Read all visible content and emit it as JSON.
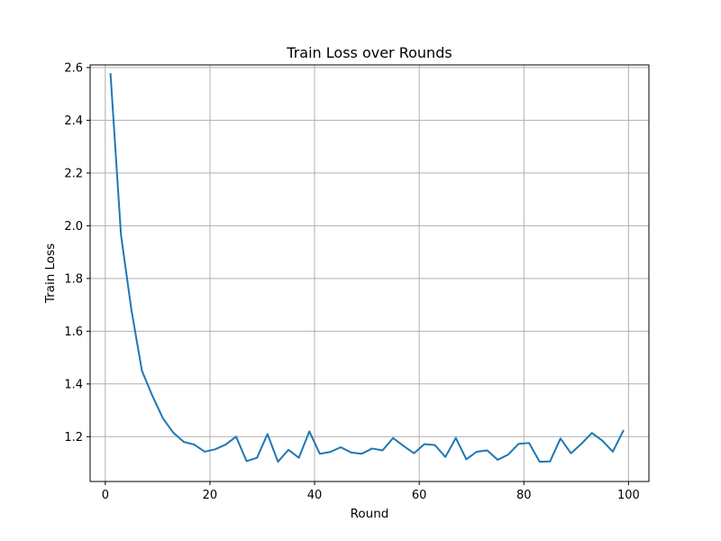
{
  "chart_data": {
    "type": "line",
    "title": "Train Loss over Rounds",
    "xlabel": "Round",
    "ylabel": "Train Loss",
    "xlim": [
      -2.9,
      103.9
    ],
    "ylim": [
      1.03,
      2.61
    ],
    "xticks": [
      0,
      20,
      40,
      60,
      80,
      100
    ],
    "yticks": [
      1.2,
      1.4,
      1.6,
      1.8,
      2.0,
      2.2,
      2.4,
      2.6
    ],
    "xtick_labels": [
      "0",
      "20",
      "40",
      "60",
      "80",
      "100"
    ],
    "ytick_labels": [
      "1.2",
      "1.4",
      "1.6",
      "1.8",
      "2.0",
      "2.2",
      "2.4",
      "2.6"
    ],
    "grid": true,
    "series": [
      {
        "color": "#1f77b4",
        "x": [
          1,
          3,
          5,
          7,
          9,
          11,
          13,
          15,
          17,
          19,
          21,
          23,
          25,
          27,
          29,
          31,
          33,
          35,
          37,
          39,
          41,
          43,
          45,
          47,
          49,
          51,
          53,
          55,
          57,
          59,
          61,
          63,
          65,
          67,
          69,
          71,
          73,
          75,
          77,
          79,
          81,
          83,
          85,
          87,
          89,
          91,
          93,
          95,
          97,
          99
        ],
        "y": [
          2.575,
          1.965,
          1.68,
          1.45,
          1.355,
          1.27,
          1.215,
          1.18,
          1.17,
          1.143,
          1.152,
          1.17,
          1.2,
          1.107,
          1.12,
          1.21,
          1.105,
          1.15,
          1.12,
          1.22,
          1.135,
          1.142,
          1.16,
          1.14,
          1.135,
          1.155,
          1.148,
          1.195,
          1.165,
          1.137,
          1.172,
          1.168,
          1.123,
          1.195,
          1.114,
          1.143,
          1.148,
          1.112,
          1.132,
          1.173,
          1.176,
          1.105,
          1.106,
          1.193,
          1.137,
          1.173,
          1.214,
          1.185,
          1.143,
          1.222
        ]
      }
    ]
  }
}
